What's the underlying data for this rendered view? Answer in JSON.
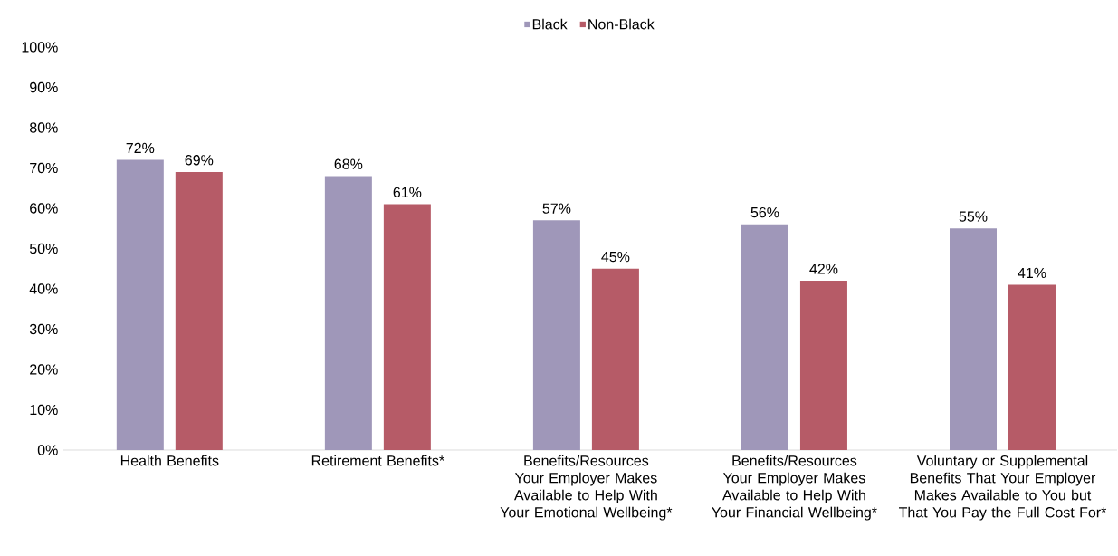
{
  "chart_data": {
    "type": "bar",
    "categories": [
      "Health Benefits",
      "Retirement Benefits*",
      "Benefits/Resources Your Employer Makes Available to Help With Your Emotional Wellbeing*",
      "Benefits/Resources Your Employer Makes Available to Help With Your Financial Wellbeing*",
      "Voluntary or Supplemental Benefits That Your Employer Makes Available to You but That You Pay the Full Cost For*"
    ],
    "series": [
      {
        "name": "Black",
        "color": "#9f97b9",
        "values": [
          72,
          68,
          57,
          56,
          55
        ],
        "value_labels": [
          "72%",
          "68%",
          "57%",
          "56%",
          "55%"
        ]
      },
      {
        "name": "Non-Black",
        "color": "#b65b67",
        "values": [
          69,
          61,
          45,
          42,
          41
        ],
        "value_labels": [
          "69%",
          "61%",
          "45%",
          "42%",
          "41%"
        ]
      }
    ],
    "ylim": [
      0,
      100
    ],
    "yticks": [
      {
        "value": 0,
        "label": "0%"
      },
      {
        "value": 10,
        "label": "10%"
      },
      {
        "value": 20,
        "label": "20%"
      },
      {
        "value": 30,
        "label": "30%"
      },
      {
        "value": 40,
        "label": "40%"
      },
      {
        "value": 50,
        "label": "50%"
      },
      {
        "value": 60,
        "label": "60%"
      },
      {
        "value": 70,
        "label": "70%"
      },
      {
        "value": 80,
        "label": "80%"
      },
      {
        "value": 90,
        "label": "90%"
      },
      {
        "value": 100,
        "label": "100%"
      }
    ],
    "legend": "top",
    "grid": false
  }
}
